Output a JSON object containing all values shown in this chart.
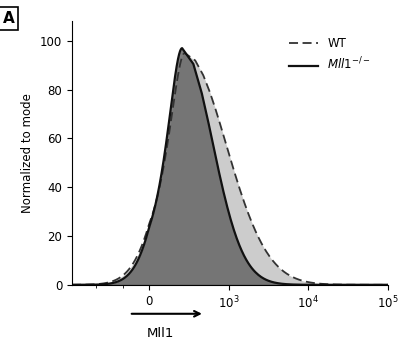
{
  "panel_label": "A",
  "xlabel": "Mll1",
  "ylabel": "Normalized to mode",
  "ylim": [
    0,
    108
  ],
  "yticks": [
    0,
    20,
    40,
    60,
    80,
    100
  ],
  "background_color": "#ffffff",
  "wt_fill_color": "#aaaaaa",
  "wt_line_color": "#333333",
  "mll_fill_color": "#666666",
  "mll_line_color": "#111111",
  "legend_wt_label": "WT",
  "legend_mll_label": "$Mll1^{-/-}$"
}
